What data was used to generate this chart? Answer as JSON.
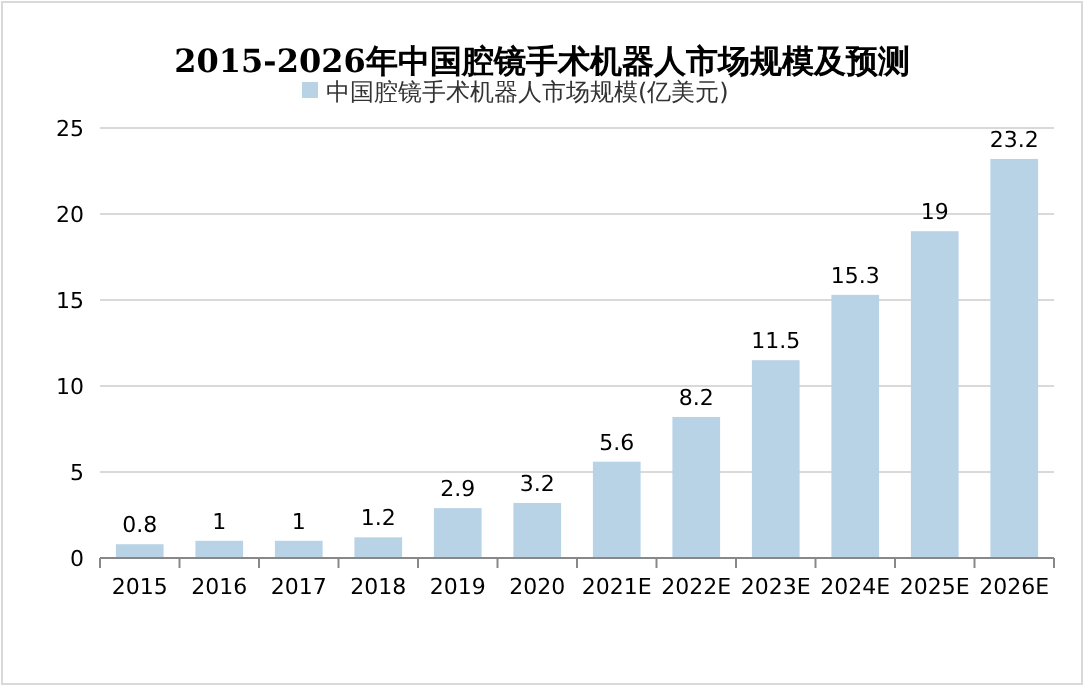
{
  "chart_data": {
    "type": "bar",
    "title": "2015-2026年中国腔镜手术机器人市场规模及预测",
    "categories": [
      "2015",
      "2016",
      "2017",
      "2018",
      "2019",
      "2020",
      "2021E",
      "2022E",
      "2023E",
      "2024E",
      "2025E",
      "2026E"
    ],
    "series": [
      {
        "name": "中国腔镜手术机器人市场规模(亿美元)",
        "color": "#b8d3e6",
        "values": [
          0.8,
          1,
          1,
          1.2,
          2.9,
          3.2,
          5.6,
          8.2,
          11.5,
          15.3,
          19,
          23.2
        ]
      }
    ],
    "ylim": [
      0,
      25
    ],
    "yticks": [
      0,
      5,
      10,
      15,
      20,
      25
    ],
    "grid": "y",
    "legend": "top",
    "data_labels": true
  }
}
